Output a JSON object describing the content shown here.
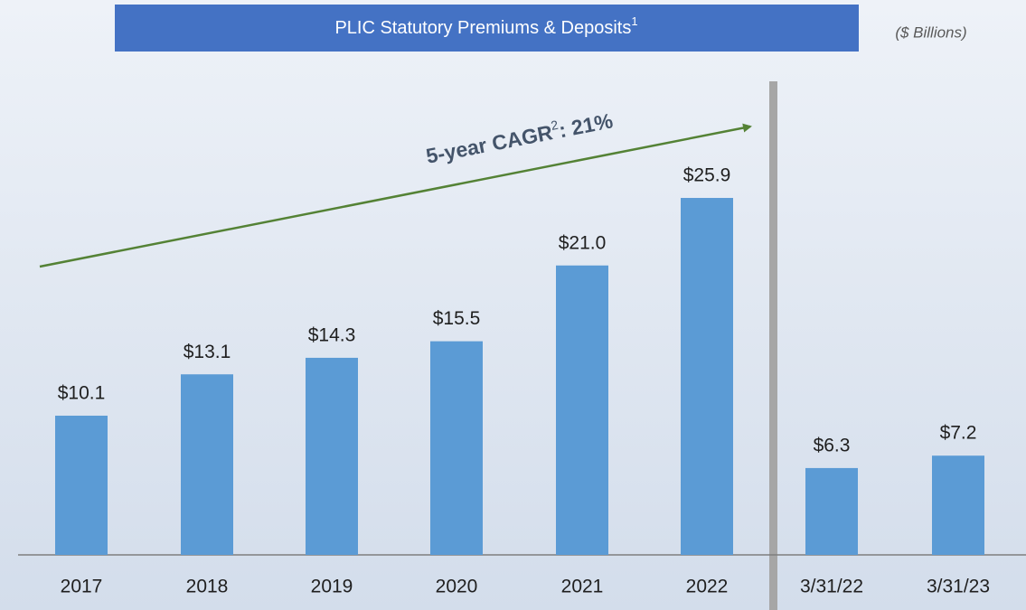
{
  "chart_data": {
    "type": "bar",
    "title": "PLIC Statutory Premiums & Deposits",
    "title_superscript": "1",
    "subtitle": "($ Billions)",
    "categories": [
      "2017",
      "2018",
      "2019",
      "2020",
      "2021",
      "2022",
      "3/31/22",
      "3/31/23"
    ],
    "values": [
      10.1,
      13.1,
      14.3,
      15.5,
      21.0,
      25.9,
      6.3,
      7.2
    ],
    "value_labels": [
      "$10.1",
      "$13.1",
      "$14.3",
      "$15.5",
      "$21.0",
      "$25.9",
      "$6.3",
      "$7.2"
    ],
    "color": "#5b9bd5",
    "annotation": {
      "text": "5-year CAGR",
      "superscript": "2",
      "rest": ": 21%",
      "color": "#548235"
    }
  }
}
